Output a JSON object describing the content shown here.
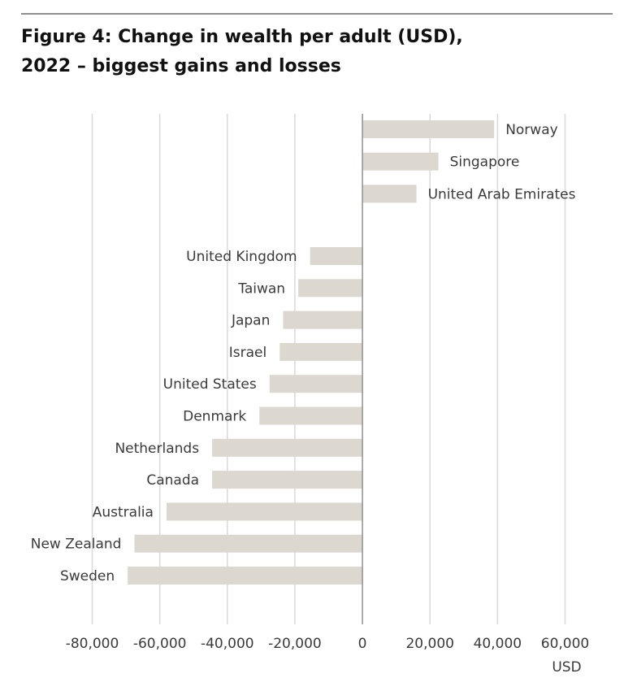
{
  "title_line1": "Figure 4: Change in wealth per adult (USD),",
  "title_line2": "2022 – biggest gains and losses",
  "chart_data": {
    "type": "bar",
    "orientation": "horizontal",
    "title": "Figure 4: Change in wealth per adult (USD), 2022 – biggest gains and losses",
    "xlabel": "USD",
    "ylabel": "",
    "xlim": [
      -80000,
      60000
    ],
    "xticks": [
      -80000,
      -60000,
      -40000,
      -20000,
      0,
      20000,
      40000,
      60000
    ],
    "xtick_labels": [
      "-80,000",
      "-60,000",
      "-40,000",
      "-20,000",
      "0",
      "20,000",
      "40,000",
      "60,000"
    ],
    "grid": true,
    "bar_color": "#dcd8d0",
    "grid_color": "#d9d9d9",
    "gains": [
      {
        "label": "Norway",
        "value": 39000
      },
      {
        "label": "Singapore",
        "value": 22500
      },
      {
        "label": "United Arab Emirates",
        "value": 16000
      }
    ],
    "losses": [
      {
        "label": "United Kingdom",
        "value": -15500
      },
      {
        "label": "Taiwan",
        "value": -19000
      },
      {
        "label": "Japan",
        "value": -23500
      },
      {
        "label": "Israel",
        "value": -24500
      },
      {
        "label": "United States",
        "value": -27500
      },
      {
        "label": "Denmark",
        "value": -30500
      },
      {
        "label": "Netherlands",
        "value": -44500
      },
      {
        "label": "Canada",
        "value": -44500
      },
      {
        "label": "Australia",
        "value": -58000
      },
      {
        "label": "New Zealand",
        "value": -67500
      },
      {
        "label": "Sweden",
        "value": -69500
      }
    ]
  }
}
